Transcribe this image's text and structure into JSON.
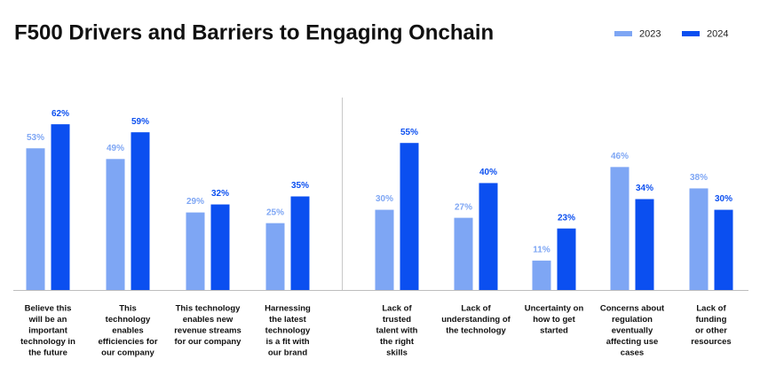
{
  "chart_data": {
    "type": "bar",
    "title": "F500 Drivers and Barriers to Engaging Onchain",
    "categories": [
      [
        "Believe this",
        "will be an",
        "important",
        "technology in",
        "the future"
      ],
      [
        "This",
        "technology",
        "enables",
        "efficiencies for",
        "our company"
      ],
      [
        "This technology",
        "enables new",
        "revenue streams",
        "for our company"
      ],
      [
        "Harnessing",
        "the latest",
        "technology",
        "is a fit with",
        "our brand"
      ],
      [
        "Lack of",
        "trusted",
        "talent with",
        "the right",
        "skills"
      ],
      [
        "Lack of",
        "understanding of",
        "the technology"
      ],
      [
        "Uncertainty on",
        "how to get",
        "started"
      ],
      [
        "Concerns about",
        "regulation",
        "eventually",
        "affecting use",
        "cases"
      ],
      [
        "Lack of",
        "funding",
        "or other",
        "resources"
      ]
    ],
    "series": [
      {
        "name": "2023",
        "color": "#7ea6f4",
        "values": [
          53,
          49,
          29,
          25,
          30,
          27,
          11,
          46,
          38
        ],
        "value_labels": [
          "53%",
          "49%",
          "29%",
          "25%",
          "30%",
          "27%",
          "11%",
          "46%",
          "38%"
        ]
      },
      {
        "name": "2024",
        "color": "#0b4ff0",
        "values": [
          62,
          59,
          32,
          35,
          55,
          40,
          23,
          34,
          30
        ],
        "value_labels": [
          "62%",
          "59%",
          "32%",
          "35%",
          "55%",
          "40%",
          "23%",
          "34%",
          "30%"
        ]
      }
    ],
    "ylim": [
      0,
      70
    ]
  }
}
